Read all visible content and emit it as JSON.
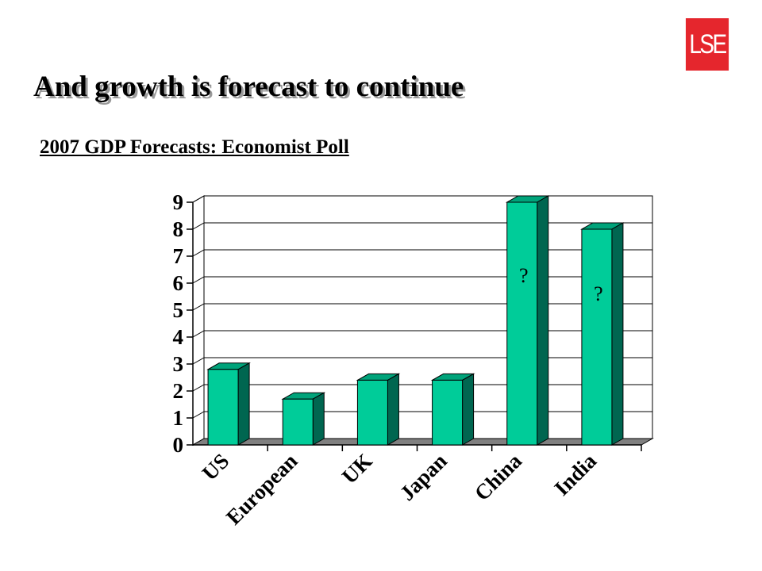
{
  "logo": {
    "text": "LSE"
  },
  "header": {
    "title": "And growth is forecast to continue",
    "subtitle": "2007 GDP Forecasts: Economist Poll"
  },
  "colors": {
    "bar_front": "#00cc99",
    "bar_side": "#006650",
    "bar_top": "#00a37a",
    "floor": "#808080",
    "logo_bg": "#e5262d"
  },
  "chart_data": {
    "type": "bar",
    "title": "",
    "xlabel": "",
    "ylabel": "",
    "categories": [
      "US",
      "European",
      "UK",
      "Japan",
      "China",
      "India"
    ],
    "values": [
      2.8,
      1.7,
      2.4,
      2.4,
      9.0,
      8.0
    ],
    "annotations": [
      "",
      "",
      "",
      "",
      "?",
      "?"
    ],
    "ylim": [
      0,
      9
    ],
    "yticks": [
      "0",
      "1",
      "2",
      "3",
      "4",
      "5",
      "6",
      "7",
      "8",
      "9"
    ],
    "grid": true,
    "legend": "none",
    "style": "3d"
  }
}
